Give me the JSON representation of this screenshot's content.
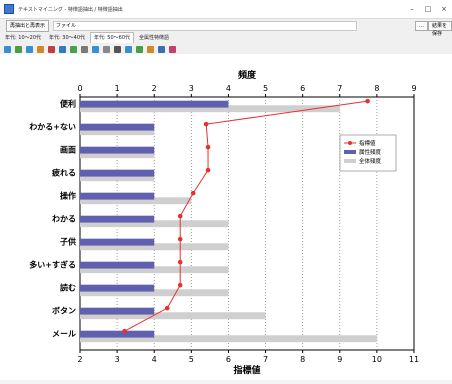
{
  "window": {
    "title": "テキストマイニング - 特徴語抽出 / 特徴語抽出",
    "minimize": "–",
    "maximize": "□",
    "close": "×"
  },
  "toolbar1": {
    "button_label": "再抽出と再表示",
    "path_value": "ファイル",
    "right_button1": "…",
    "right_button2": "結果を保存"
  },
  "tabs": [
    {
      "label": "年代: 10～20代"
    },
    {
      "label": "年代: 30～40代"
    },
    {
      "label": "年代: 50～60代"
    },
    {
      "label": "全属性特徴語"
    }
  ],
  "toolbar_icons": [
    "search-icon",
    "zoom-in-icon",
    "zoom-out-icon",
    "home-icon",
    "info-icon",
    "play-icon",
    "refresh-icon",
    "grid-icon",
    "chart-icon",
    "settings-icon",
    "gear-icon",
    "table-icon",
    "export-icon",
    "image-icon",
    "save-icon",
    "paint-icon"
  ],
  "chart_data": {
    "type": "bar",
    "title": "",
    "top_axis_label": "頻度",
    "bottom_axis_label": "指標値",
    "top_axis": {
      "range": [
        0,
        9
      ],
      "ticks": [
        0,
        1,
        2,
        3,
        4,
        5,
        6,
        7,
        8,
        9
      ]
    },
    "bottom_axis": {
      "range": [
        2,
        11
      ],
      "ticks": [
        2,
        3,
        4,
        5,
        6,
        7,
        8,
        9,
        10,
        11
      ]
    },
    "grid": "vertical-dotted",
    "legend_position": "top-right",
    "categories": [
      "便利",
      "わかる+ない",
      "画面",
      "疲れる",
      "操作",
      "わかる",
      "子供",
      "多い+すぎる",
      "読む",
      "ボタン",
      "メール"
    ],
    "series": [
      {
        "name": "指標値",
        "kind": "line",
        "color": "#e8312f",
        "values": [
          9.75,
          5.4,
          5.45,
          5.45,
          5.05,
          4.7,
          4.7,
          4.7,
          4.7,
          4.35,
          3.2
        ]
      },
      {
        "name": "属性頻度",
        "kind": "bar",
        "color": "#6060ae",
        "values": [
          4,
          2,
          2,
          2,
          2,
          2,
          2,
          2,
          2,
          2,
          2
        ]
      },
      {
        "name": "全体頻度",
        "kind": "bar",
        "color": "#cfcfcf",
        "values": [
          7,
          2,
          2,
          2,
          3,
          4,
          4,
          4,
          4,
          5,
          8
        ]
      }
    ]
  }
}
